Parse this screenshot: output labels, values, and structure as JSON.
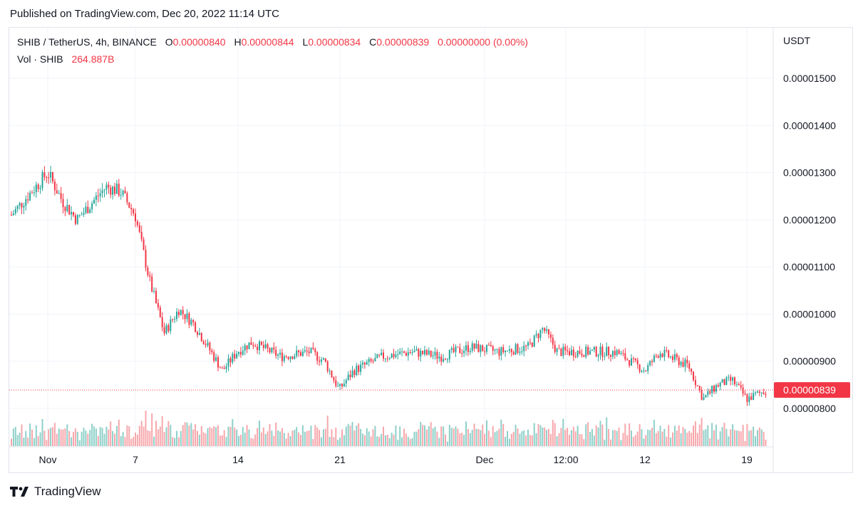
{
  "published": "Published on TradingView.com, Dec 20, 2022 11:14 UTC",
  "legend": {
    "symbol": "SHIB / TetherUS, 4h, BINANCE",
    "o_label": "O",
    "o": "0.00000840",
    "h_label": "H",
    "h": "0.00000844",
    "l_label": "L",
    "l": "0.00000834",
    "c_label": "C",
    "c": "0.00000839",
    "change": "0.00000000 (0.00%)",
    "vol_label": "Vol · SHIB",
    "vol": "264.887B"
  },
  "colors": {
    "up": "#26a69a",
    "down": "#f23645",
    "up_vol": "#8fd0c9",
    "down_vol": "#f7a7ac",
    "grid": "#f0f3fa"
  },
  "chart_data": {
    "type": "candlestick",
    "symbol": "SHIB / TetherUS",
    "interval": "4h",
    "exchange": "BINANCE",
    "y_unit": "USDT",
    "ylim": [
      7.6e-06,
      1.56e-05
    ],
    "y_ticks": [
      "0.00001500",
      "0.00001400",
      "0.00001300",
      "0.00001200",
      "0.00001100",
      "0.00001000",
      "0.00000900",
      "0.00000800"
    ],
    "x_ticks": [
      "Nov",
      "7",
      "14",
      "21",
      "Dec",
      "12:00",
      "12",
      "19"
    ],
    "last_price": "0.00000839",
    "key_points": [
      {
        "date": "Oct 31",
        "close": 1.21e-05
      },
      {
        "date": "Nov 1",
        "close": 1.3e-05
      },
      {
        "date": "Nov 2",
        "close": 1.24e-05
      },
      {
        "date": "Nov 3",
        "close": 1.2e-05
      },
      {
        "date": "Nov 5",
        "close": 1.27e-05
      },
      {
        "date": "Nov 6",
        "close": 1.26e-05
      },
      {
        "date": "Nov 7",
        "close": 1.21e-05
      },
      {
        "date": "Nov 8",
        "close": 1.07e-05
      },
      {
        "date": "Nov 9",
        "close": 9.6e-06
      },
      {
        "date": "Nov 10",
        "close": 1.01e-05
      },
      {
        "date": "Nov 11",
        "close": 9.8e-06
      },
      {
        "date": "Nov 13",
        "close": 8.8e-06
      },
      {
        "date": "Nov 14",
        "close": 9.2e-06
      },
      {
        "date": "Nov 15",
        "close": 9.4e-06
      },
      {
        "date": "Nov 17",
        "close": 9.1e-06
      },
      {
        "date": "Nov 19",
        "close": 9.2e-06
      },
      {
        "date": "Nov 20",
        "close": 9e-06
      },
      {
        "date": "Nov 21",
        "close": 8.4e-06
      },
      {
        "date": "Nov 22",
        "close": 8.8e-06
      },
      {
        "date": "Nov 24",
        "close": 9.1e-06
      },
      {
        "date": "Nov 26",
        "close": 9.2e-06
      },
      {
        "date": "Nov 28",
        "close": 9.1e-06
      },
      {
        "date": "Nov 30",
        "close": 9.3e-06
      },
      {
        "date": "Dec 2",
        "close": 9.2e-06
      },
      {
        "date": "Dec 4",
        "close": 9.3e-06
      },
      {
        "date": "Dec 5",
        "close": 9.7e-06
      },
      {
        "date": "Dec 6",
        "close": 9.2e-06
      },
      {
        "date": "Dec 8",
        "close": 9.2e-06
      },
      {
        "date": "Dec 10",
        "close": 9.2e-06
      },
      {
        "date": "Dec 12",
        "close": 8.8e-06
      },
      {
        "date": "Dec 13",
        "close": 9.2e-06
      },
      {
        "date": "Dec 15",
        "close": 8.9e-06
      },
      {
        "date": "Dec 16",
        "close": 8.2e-06
      },
      {
        "date": "Dec 17",
        "close": 8.5e-06
      },
      {
        "date": "Dec 18",
        "close": 8.6e-06
      },
      {
        "date": "Dec 19",
        "close": 8.2e-06
      },
      {
        "date": "Dec 20",
        "close": 8.39e-06
      }
    ],
    "volume": {
      "series_name": "Vol · SHIB",
      "last": "264.887B"
    }
  },
  "footer": {
    "brand": "TradingView",
    "logo_icon": "tradingview-logo-icon"
  }
}
